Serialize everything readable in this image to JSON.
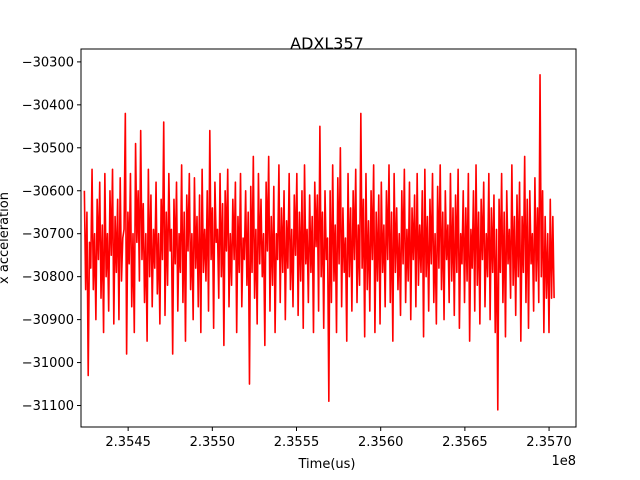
{
  "chart_data": {
    "type": "line",
    "title": "ADXL357",
    "xlabel": "Time(us)",
    "ylabel": "x acceleration",
    "x_offset_text": "1e8",
    "xlim": [
      235422000,
      235716000
    ],
    "ylim": [
      -31150,
      -30270
    ],
    "x_ticks": [
      235450000,
      235500000,
      235550000,
      235600000,
      235650000,
      235700000
    ],
    "x_tick_labels": [
      "2.3545",
      "2.3550",
      "2.3555",
      "2.3560",
      "2.3565",
      "2.3570"
    ],
    "y_ticks": [
      -31100,
      -31000,
      -30900,
      -30800,
      -30700,
      -30600,
      -30500,
      -30400,
      -30300
    ],
    "y_tick_labels": [
      "−31100",
      "−31000",
      "−30900",
      "−30800",
      "−30700",
      "−30600",
      "−30500",
      "−30400",
      "−30300"
    ],
    "grid": false,
    "legend": "none",
    "series": [
      {
        "color": "#ff0000",
        "x_start": 235424000,
        "x_end": 235703000,
        "values": [
          -30600,
          -30830,
          -30650,
          -31030,
          -30720,
          -30780,
          -30550,
          -30830,
          -30700,
          -30900,
          -30620,
          -30760,
          -30580,
          -30850,
          -30680,
          -30930,
          -30560,
          -30800,
          -30700,
          -30880,
          -30600,
          -30750,
          -30550,
          -30910,
          -30660,
          -30790,
          -30620,
          -30900,
          -30570,
          -30810,
          -30710,
          -30690,
          -30420,
          -30980,
          -30650,
          -30770,
          -30560,
          -30870,
          -30700,
          -30930,
          -30490,
          -30720,
          -30600,
          -30810,
          -30460,
          -30760,
          -30630,
          -30860,
          -30700,
          -30950,
          -30550,
          -30800,
          -30610,
          -30870,
          -30690,
          -30780,
          -30580,
          -30840,
          -30700,
          -30910,
          -30620,
          -30760,
          -30440,
          -30890,
          -30650,
          -30820,
          -30560,
          -30740,
          -30690,
          -30980,
          -30620,
          -30770,
          -30580,
          -30880,
          -30700,
          -30790,
          -30540,
          -30860,
          -30650,
          -30950,
          -30610,
          -30740,
          -30560,
          -30830,
          -30700,
          -30900,
          -30570,
          -30780,
          -30660,
          -30870,
          -30610,
          -30930,
          -30550,
          -30790,
          -30690,
          -30810,
          -30600,
          -30880,
          -30460,
          -30760,
          -30640,
          -30920,
          -30580,
          -30720,
          -30690,
          -30850,
          -30560,
          -30800,
          -30630,
          -30960,
          -30600,
          -30740,
          -30550,
          -30870,
          -30700,
          -30820,
          -30620,
          -30760,
          -30580,
          -30930,
          -30660,
          -30790,
          -30560,
          -30870,
          -30710,
          -30760,
          -30600,
          -30820,
          -30650,
          -31050,
          -30590,
          -30790,
          -30520,
          -30850,
          -30690,
          -30910,
          -30560,
          -30770,
          -30620,
          -30800,
          -30700,
          -30960,
          -30580,
          -30740,
          -30520,
          -30880,
          -30660,
          -30820,
          -30590,
          -30930,
          -30700,
          -30760,
          -30540,
          -30860,
          -30640,
          -30790,
          -30600,
          -30900,
          -30670,
          -30780,
          -30560,
          -30830,
          -30690,
          -30870,
          -30610,
          -30750,
          -30560,
          -30890,
          -30650,
          -30810,
          -30600,
          -30920,
          -30540,
          -30770,
          -30690,
          -30860,
          -30610,
          -30790,
          -30660,
          -30930,
          -30580,
          -30730,
          -30610,
          -30880,
          -30450,
          -30800,
          -30650,
          -30920,
          -30600,
          -30760,
          -30710,
          -31090,
          -30600,
          -30860,
          -30540,
          -30810,
          -30680,
          -30930,
          -30570,
          -30770,
          -30500,
          -30870,
          -30640,
          -30790,
          -30710,
          -30950,
          -30560,
          -30800,
          -30640,
          -30880,
          -30600,
          -30760,
          -30550,
          -30860,
          -30680,
          -30820,
          -30420,
          -30780,
          -30620,
          -30940,
          -30560,
          -30830,
          -30670,
          -30880,
          -30600,
          -30760,
          -30540,
          -30930,
          -30650,
          -30810,
          -30610,
          -30910,
          -30580,
          -30790,
          -30680,
          -30870,
          -30600,
          -30760,
          -30540,
          -30860,
          -30650,
          -30950,
          -30560,
          -30790,
          -30640,
          -30830,
          -30700,
          -30890,
          -30600,
          -30770,
          -30550,
          -30860,
          -30690,
          -30810,
          -30580,
          -30900,
          -30640,
          -30760,
          -30610,
          -30870,
          -30560,
          -30820,
          -30680,
          -30790,
          -30600,
          -30940,
          -30550,
          -30800,
          -30660,
          -30880,
          -30620,
          -30770,
          -30560,
          -30860,
          -30700,
          -30910,
          -30590,
          -30780,
          -30540,
          -30830,
          -30650,
          -30900,
          -30600,
          -30760,
          -30680,
          -30860,
          -30560,
          -30810,
          -30640,
          -30890,
          -30610,
          -30790,
          -30550,
          -30920,
          -30700,
          -30770,
          -30600,
          -30860,
          -30640,
          -30810,
          -30560,
          -30950,
          -30690,
          -30780,
          -30600,
          -30880,
          -30540,
          -30820,
          -30650,
          -30910,
          -30620,
          -30760,
          -30580,
          -30870,
          -30700,
          -30800,
          -30560,
          -30900,
          -30640,
          -30790,
          -30610,
          -30930,
          -30690,
          -31110,
          -30620,
          -30790,
          -30560,
          -30860,
          -30650,
          -30940,
          -30600,
          -30770,
          -30690,
          -30850,
          -30540,
          -30820,
          -30660,
          -30890,
          -30610,
          -30800,
          -30580,
          -30950,
          -30660,
          -30790,
          -30520,
          -30860,
          -30620,
          -30920,
          -30600,
          -30770,
          -30700,
          -30880,
          -30570,
          -30810,
          -30640,
          -30860,
          -30330,
          -30800,
          -30600,
          -30930,
          -30660,
          -30850,
          -30700,
          -30930,
          -30620,
          -30850,
          -30660,
          -30850
        ]
      }
    ]
  }
}
